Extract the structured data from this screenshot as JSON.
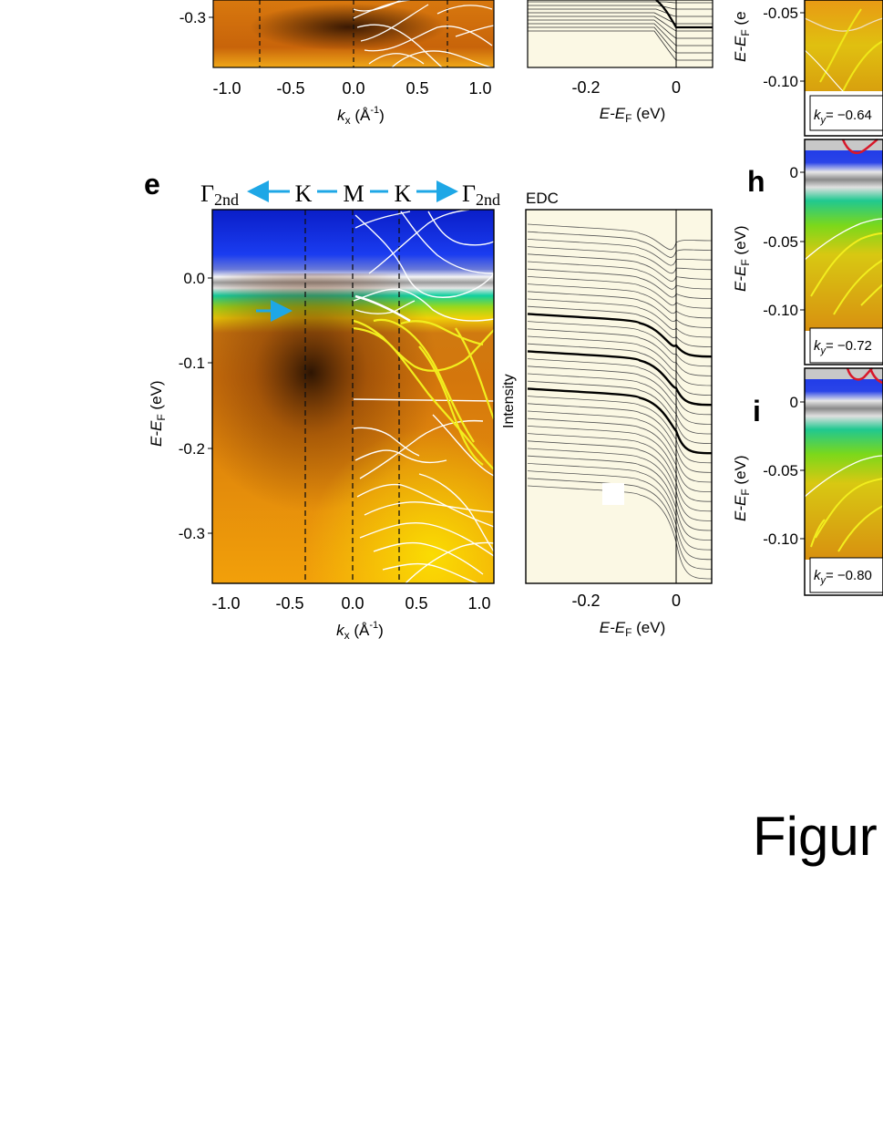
{
  "figure_caption_partial": "Figur",
  "panel_labels": {
    "e": "e",
    "h": "h",
    "i": "i"
  },
  "top_row": {
    "arpes_y_ticks": [
      "-0.3"
    ],
    "arpes_x_ticks": [
      "-1.0",
      "-0.5",
      "0.0",
      "0.5",
      "1.0"
    ],
    "arpes_xlabel": "k",
    "arpes_xlabel_sub": "x",
    "arpes_xlabel_unit": " (Å",
    "arpes_xlabel_exp": "-1",
    "arpes_xlabel_close": ")",
    "edc_x_ticks": [
      "-0.2",
      "0"
    ],
    "edc_xlabel": "E-E",
    "edc_xlabel_sub": "F",
    "edc_xlabel_unit": " (eV)"
  },
  "panel_e": {
    "path": [
      {
        "text": "Γ",
        "sub": "2nd"
      },
      {
        "text": "K"
      },
      {
        "text": "M"
      },
      {
        "text": "K"
      },
      {
        "text": "Γ",
        "sub": "2nd"
      }
    ],
    "y_ticks": [
      "0.0",
      "-0.1",
      "-0.2",
      "-0.3"
    ],
    "x_ticks": [
      "-1.0",
      "-0.5",
      "0.0",
      "0.5",
      "1.0"
    ],
    "ylabel": "E-E",
    "ylabel_sub": "F",
    "ylabel_unit": " (eV)",
    "xlabel": "k",
    "xlabel_sub": "x",
    "xlabel_unit": " (Å",
    "xlabel_exp": "-1",
    "xlabel_close": ")"
  },
  "edc_panel": {
    "title": "EDC",
    "ylabel": "Intensity",
    "x_ticks": [
      "-0.2",
      "0"
    ],
    "xlabel": "E-E",
    "xlabel_sub": "F",
    "xlabel_unit": " (eV)"
  },
  "side_panels": {
    "g_ylabel": "E-E",
    "g_ylabel_sub": "F",
    "g_ylabel_partial": " (e",
    "g_y_ticks": [
      "-0.05",
      "-0.10"
    ],
    "g_ky": "= −0.64",
    "h_y_ticks": [
      "0",
      "-0.05",
      "-0.10"
    ],
    "h_ylabel": "E-E",
    "h_ylabel_sub": "F",
    "h_ylabel_unit": " (eV)",
    "h_ky": "= −0.72",
    "i_y_ticks": [
      "0",
      "-0.05",
      "-0.10"
    ],
    "i_ylabel": "E-E",
    "i_ylabel_sub": "F",
    "i_ylabel_unit": " (eV)",
    "i_ky": "= −0.80",
    "ky_symbol": "k",
    "ky_sub": "y"
  },
  "colors": {
    "arrow_blue": "#1ea7e6",
    "band_white": "#ffffff",
    "band_yellow": "#f2ee1e",
    "band_red": "#d8182a",
    "edc_bg": "#fbf8e4"
  }
}
